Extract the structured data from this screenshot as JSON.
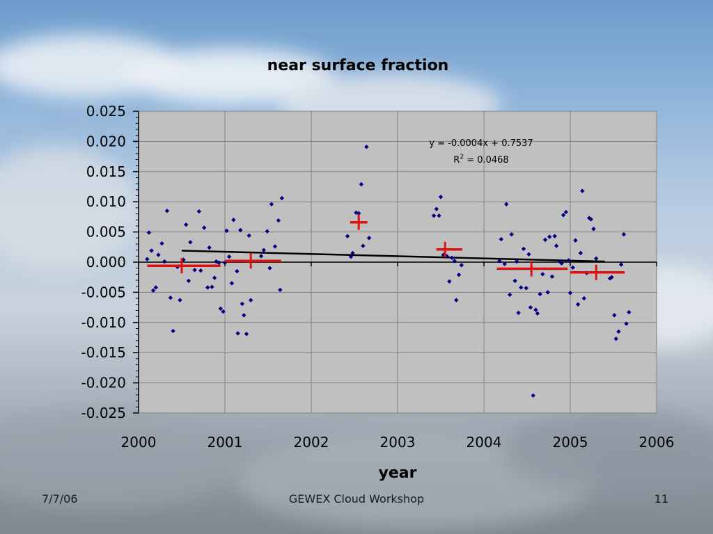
{
  "footer": {
    "date": "7/7/06",
    "title": "GEWEX Cloud Workshop",
    "page": "11"
  },
  "chart_data": {
    "type": "scatter",
    "title": "near surface fraction",
    "xlabel": "year",
    "ylabel": "",
    "xlim": [
      2000,
      2006
    ],
    "ylim": [
      -0.025,
      0.025
    ],
    "x_ticks": [
      "2000",
      "2001",
      "2002",
      "2003",
      "2004",
      "2005",
      "2006"
    ],
    "y_ticks": [
      "0.025",
      "0.020",
      "0.015",
      "0.010",
      "0.005",
      "0.000",
      "-0.005",
      "-0.010",
      "-0.015",
      "-0.020",
      "-0.025"
    ],
    "grid": true,
    "plot_background": "#c0c0c0",
    "point_color": "#000080",
    "trend_color": "#000000",
    "annual_color": "#dd1111",
    "annotation": {
      "equation": "y = -0.0004x + 0.7537",
      "r2_prefix": "R",
      "r2_sup": "2",
      "r2_value": " = 0.0468"
    },
    "trendline": {
      "x": [
        2000.5,
        2005.4
      ],
      "y": [
        0.0019,
        0.0001
      ]
    },
    "annual_means": [
      {
        "x": 2000.5,
        "y": -0.0006,
        "x_range": [
          2000.1,
          2000.95
        ]
      },
      {
        "x": 2001.3,
        "y": 0.0002,
        "x_range": [
          2001.0,
          2001.65
        ]
      },
      {
        "x": 2002.55,
        "y": 0.0066,
        "x_range": [
          2002.45,
          2002.65
        ]
      },
      {
        "x": 2003.55,
        "y": 0.0021,
        "x_range": [
          2003.45,
          2003.75
        ]
      },
      {
        "x": 2004.55,
        "y": -0.0011,
        "x_range": [
          2004.15,
          2004.97
        ]
      },
      {
        "x": 2005.3,
        "y": -0.0017,
        "x_range": [
          2005.0,
          2005.63
        ]
      }
    ],
    "points": [
      {
        "x": 2000.1,
        "y": 0.0005
      },
      {
        "x": 2000.12,
        "y": 0.0049
      },
      {
        "x": 2000.15,
        "y": 0.0019
      },
      {
        "x": 2000.17,
        "y": -0.0047
      },
      {
        "x": 2000.2,
        "y": -0.0042
      },
      {
        "x": 2000.23,
        "y": 0.0012
      },
      {
        "x": 2000.27,
        "y": 0.0031
      },
      {
        "x": 2000.3,
        "y": 0.0001
      },
      {
        "x": 2000.33,
        "y": 0.0085
      },
      {
        "x": 2000.37,
        "y": -0.0059
      },
      {
        "x": 2000.4,
        "y": -0.0114
      },
      {
        "x": 2000.45,
        "y": -0.0008
      },
      {
        "x": 2000.48,
        "y": -0.0063
      },
      {
        "x": 2000.52,
        "y": 0.0004
      },
      {
        "x": 2000.55,
        "y": 0.0062
      },
      {
        "x": 2000.58,
        "y": -0.0031
      },
      {
        "x": 2000.6,
        "y": 0.0033
      },
      {
        "x": 2000.65,
        "y": -0.0013
      },
      {
        "x": 2000.7,
        "y": 0.0084
      },
      {
        "x": 2000.72,
        "y": -0.0014
      },
      {
        "x": 2000.76,
        "y": 0.0057
      },
      {
        "x": 2000.8,
        "y": -0.0042
      },
      {
        "x": 2000.82,
        "y": 0.0024
      },
      {
        "x": 2000.85,
        "y": -0.0041
      },
      {
        "x": 2000.88,
        "y": -0.0026
      },
      {
        "x": 2000.9,
        "y": 0.0001
      },
      {
        "x": 2000.93,
        "y": -0.0001
      },
      {
        "x": 2000.95,
        "y": -0.0077
      },
      {
        "x": 2000.98,
        "y": -0.0082
      },
      {
        "x": 2001.0,
        "y": -0.0001
      },
      {
        "x": 2001.02,
        "y": 0.0052
      },
      {
        "x": 2001.05,
        "y": 0.0009
      },
      {
        "x": 2001.08,
        "y": -0.0035
      },
      {
        "x": 2001.1,
        "y": 0.007
      },
      {
        "x": 2001.14,
        "y": -0.0015
      },
      {
        "x": 2001.15,
        "y": -0.0118
      },
      {
        "x": 2001.18,
        "y": 0.0053
      },
      {
        "x": 2001.2,
        "y": -0.0069
      },
      {
        "x": 2001.22,
        "y": -0.0088
      },
      {
        "x": 2001.25,
        "y": -0.0119
      },
      {
        "x": 2001.28,
        "y": 0.0044
      },
      {
        "x": 2001.3,
        "y": -0.0063
      },
      {
        "x": 2001.42,
        "y": 0.001
      },
      {
        "x": 2001.45,
        "y": 0.002
      },
      {
        "x": 2001.49,
        "y": 0.0051
      },
      {
        "x": 2001.52,
        "y": -0.001
      },
      {
        "x": 2001.54,
        "y": 0.0096
      },
      {
        "x": 2001.58,
        "y": 0.0026
      },
      {
        "x": 2001.62,
        "y": 0.0069
      },
      {
        "x": 2001.64,
        "y": -0.0046
      },
      {
        "x": 2001.66,
        "y": 0.0106
      },
      {
        "x": 2002.42,
        "y": 0.0043
      },
      {
        "x": 2002.46,
        "y": 0.0009
      },
      {
        "x": 2002.48,
        "y": 0.0015
      },
      {
        "x": 2002.52,
        "y": 0.0082
      },
      {
        "x": 2002.55,
        "y": 0.0081
      },
      {
        "x": 2002.58,
        "y": 0.0129
      },
      {
        "x": 2002.6,
        "y": 0.0027
      },
      {
        "x": 2002.64,
        "y": 0.0191
      },
      {
        "x": 2002.67,
        "y": 0.004
      },
      {
        "x": 2003.42,
        "y": 0.0077
      },
      {
        "x": 2003.45,
        "y": 0.0088
      },
      {
        "x": 2003.48,
        "y": 0.0077
      },
      {
        "x": 2003.5,
        "y": 0.0108
      },
      {
        "x": 2003.53,
        "y": 0.0012
      },
      {
        "x": 2003.57,
        "y": 0.001
      },
      {
        "x": 2003.6,
        "y": -0.0032
      },
      {
        "x": 2003.63,
        "y": 0.0007
      },
      {
        "x": 2003.66,
        "y": 0.0002
      },
      {
        "x": 2003.68,
        "y": -0.0063
      },
      {
        "x": 2003.71,
        "y": -0.0021
      },
      {
        "x": 2003.74,
        "y": -0.0005
      },
      {
        "x": 2004.18,
        "y": 0.0002
      },
      {
        "x": 2004.2,
        "y": 0.0038
      },
      {
        "x": 2004.24,
        "y": -0.0003
      },
      {
        "x": 2004.26,
        "y": 0.0096
      },
      {
        "x": 2004.3,
        "y": -0.0054
      },
      {
        "x": 2004.32,
        "y": 0.0046
      },
      {
        "x": 2004.36,
        "y": -0.0031
      },
      {
        "x": 2004.38,
        "y": 0.0001
      },
      {
        "x": 2004.4,
        "y": -0.0084
      },
      {
        "x": 2004.43,
        "y": -0.0042
      },
      {
        "x": 2004.46,
        "y": 0.0022
      },
      {
        "x": 2004.49,
        "y": -0.0043
      },
      {
        "x": 2004.52,
        "y": 0.0013
      },
      {
        "x": 2004.54,
        "y": -0.0075
      },
      {
        "x": 2004.57,
        "y": -0.0221
      },
      {
        "x": 2004.6,
        "y": -0.0079
      },
      {
        "x": 2004.62,
        "y": -0.0085
      },
      {
        "x": 2004.65,
        "y": -0.0053
      },
      {
        "x": 2004.68,
        "y": -0.002
      },
      {
        "x": 2004.71,
        "y": 0.0037
      },
      {
        "x": 2004.74,
        "y": -0.005
      },
      {
        "x": 2004.76,
        "y": 0.0042
      },
      {
        "x": 2004.79,
        "y": -0.0024
      },
      {
        "x": 2004.82,
        "y": 0.0043
      },
      {
        "x": 2004.84,
        "y": 0.0027
      },
      {
        "x": 2004.88,
        "y": 0.0001
      },
      {
        "x": 2004.9,
        "y": -0.0002
      },
      {
        "x": 2004.92,
        "y": 0.0078
      },
      {
        "x": 2004.95,
        "y": 0.0083
      },
      {
        "x": 2004.98,
        "y": 0.0003
      },
      {
        "x": 2005.0,
        "y": -0.0051
      },
      {
        "x": 2005.03,
        "y": -0.0009
      },
      {
        "x": 2005.06,
        "y": 0.0036
      },
      {
        "x": 2005.09,
        "y": -0.007
      },
      {
        "x": 2005.12,
        "y": 0.0015
      },
      {
        "x": 2005.14,
        "y": 0.0118
      },
      {
        "x": 2005.16,
        "y": -0.006
      },
      {
        "x": 2005.19,
        "y": -0.0018
      },
      {
        "x": 2005.22,
        "y": 0.0073
      },
      {
        "x": 2005.24,
        "y": 0.0071
      },
      {
        "x": 2005.27,
        "y": 0.0055
      },
      {
        "x": 2005.3,
        "y": 0.0006
      },
      {
        "x": 2005.46,
        "y": -0.0027
      },
      {
        "x": 2005.48,
        "y": -0.0025
      },
      {
        "x": 2005.51,
        "y": -0.0088
      },
      {
        "x": 2005.53,
        "y": -0.0127
      },
      {
        "x": 2005.56,
        "y": -0.0115
      },
      {
        "x": 2005.59,
        "y": -0.0004
      },
      {
        "x": 2005.62,
        "y": 0.0046
      },
      {
        "x": 2005.65,
        "y": -0.0102
      },
      {
        "x": 2005.68,
        "y": -0.0083
      }
    ]
  }
}
